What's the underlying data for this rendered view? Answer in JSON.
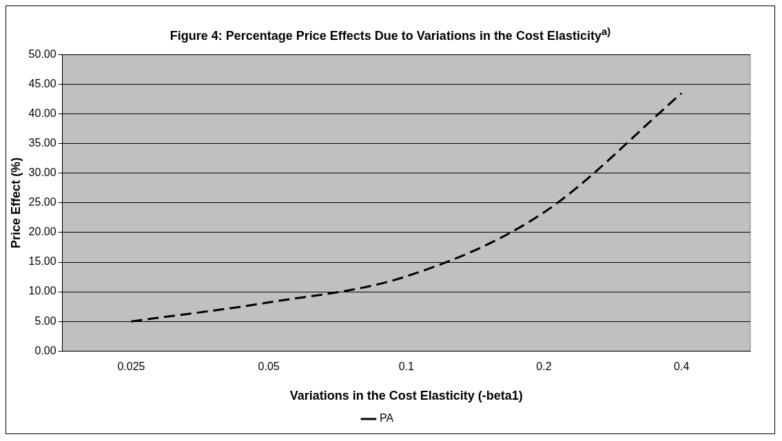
{
  "chart_data": {
    "type": "line",
    "title": "Figure 4: Percentage Price Effects Due to Variations in the Cost Elasticity$^{a)}$",
    "xlabel": "Variations in the Cost Elasticity (-beta1)",
    "ylabel": "Price Effect (%)",
    "categories": [
      "0.025",
      "0.05",
      "0.1",
      "0.2",
      "0.4"
    ],
    "series": [
      {
        "name": "PA",
        "color": "#000000",
        "values": [
          5.0,
          8.2,
          12.6,
          23.4,
          43.5
        ]
      }
    ],
    "ylim": [
      0,
      50
    ],
    "yticks": [
      {
        "value": 0,
        "label": "0.00"
      },
      {
        "value": 5,
        "label": "5.00"
      },
      {
        "value": 10,
        "label": "10.00"
      },
      {
        "value": 15,
        "label": "15.00"
      },
      {
        "value": 20,
        "label": "20.00"
      },
      {
        "value": 25,
        "label": "25.00"
      },
      {
        "value": 30,
        "label": "30.00"
      },
      {
        "value": 35,
        "label": "35.00"
      },
      {
        "value": 40,
        "label": "40.00"
      },
      {
        "value": 45,
        "label": "45.00"
      },
      {
        "value": 50,
        "label": "50.00"
      }
    ],
    "grid": "y",
    "legend": "bottom",
    "line_style": "dashed",
    "marker": "none"
  }
}
